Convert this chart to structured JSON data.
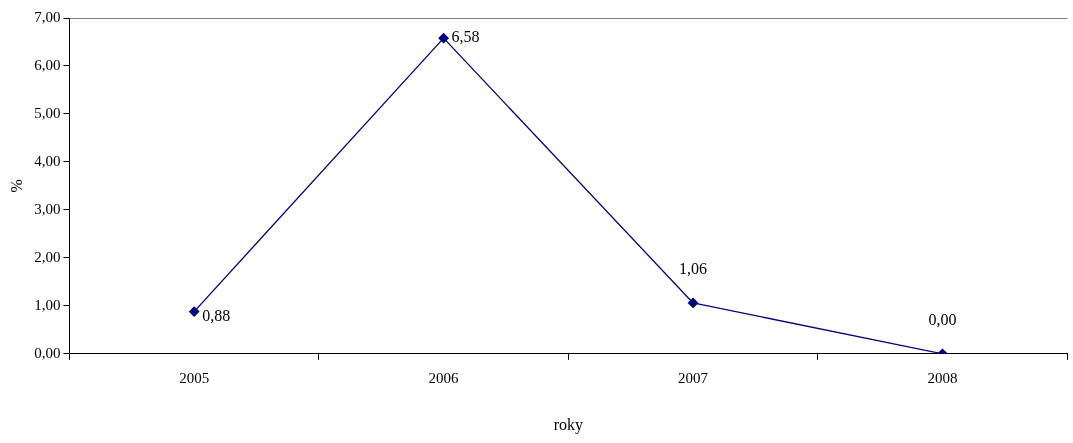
{
  "chart_data": {
    "type": "line",
    "xlabel": "roky",
    "ylabel": "%",
    "categories": [
      "2005",
      "2006",
      "2007",
      "2008"
    ],
    "series": [
      {
        "color": "#000080",
        "values": [
          0.88,
          6.58,
          1.06,
          0
        ],
        "value_labels": [
          "0,88",
          "6,58",
          "1,06",
          "0,00"
        ]
      }
    ],
    "ylim": [
      0,
      7
    ],
    "yticks": [
      {
        "value": 0,
        "label": "0,00"
      },
      {
        "value": 1,
        "label": "1,00"
      },
      {
        "value": 2,
        "label": "2,00"
      },
      {
        "value": 3,
        "label": "3,00"
      },
      {
        "value": 4,
        "label": "4,00"
      },
      {
        "value": 5,
        "label": "5,00"
      },
      {
        "value": 6,
        "label": "6,00"
      },
      {
        "value": 7,
        "label": "7,00"
      }
    ],
    "grid": false,
    "legend": false,
    "marker": "diamond",
    "line_style": "solid"
  }
}
